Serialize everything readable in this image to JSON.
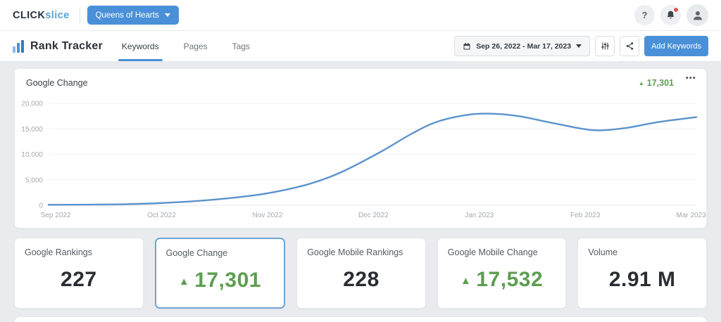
{
  "topbar": {
    "logo_primary": "CLICK",
    "logo_secondary": "slice",
    "project_name": "Queens of Hearts"
  },
  "toolbar": {
    "title": "Rank Tracker",
    "tabs": [
      {
        "label": "Keywords",
        "active": true
      },
      {
        "label": "Pages",
        "active": false
      },
      {
        "label": "Tags",
        "active": false
      }
    ],
    "date_range": "Sep 26, 2022 - Mar 17, 2023",
    "add_keywords_label": "Add Keywords"
  },
  "chart_panel": {
    "title": "Google Change",
    "delta_value": "17,301",
    "delta_direction": "up"
  },
  "chart_data": {
    "type": "line",
    "title": "Google Change",
    "x_tick_labels": [
      "Sep 2022",
      "Oct 2022",
      "Nov 2022",
      "Dec 2022",
      "Jan 2023",
      "Feb 2023",
      "Mar 2023"
    ],
    "y_ticks": [
      0,
      5000,
      10000,
      15000,
      20000
    ],
    "y_tick_labels": [
      "0",
      "5,000",
      "10,000",
      "15,000",
      "20,000"
    ],
    "ylim": [
      0,
      20000
    ],
    "grid": true,
    "legend": false,
    "line_color": "#5b93cc",
    "series": [
      {
        "name": "Google Change",
        "points": [
          {
            "x": 0.0,
            "y": 100
          },
          {
            "x": 0.06,
            "y": 130
          },
          {
            "x": 0.12,
            "y": 220
          },
          {
            "x": 0.17,
            "y": 420
          },
          {
            "x": 0.23,
            "y": 850
          },
          {
            "x": 0.29,
            "y": 1550
          },
          {
            "x": 0.34,
            "y": 2400
          },
          {
            "x": 0.4,
            "y": 4100
          },
          {
            "x": 0.45,
            "y": 6400
          },
          {
            "x": 0.51,
            "y": 10300
          },
          {
            "x": 0.56,
            "y": 14000
          },
          {
            "x": 0.6,
            "y": 16400
          },
          {
            "x": 0.65,
            "y": 17800
          },
          {
            "x": 0.69,
            "y": 17950
          },
          {
            "x": 0.73,
            "y": 17400
          },
          {
            "x": 0.78,
            "y": 16100
          },
          {
            "x": 0.84,
            "y": 14750
          },
          {
            "x": 0.89,
            "y": 15150
          },
          {
            "x": 0.94,
            "y": 16300
          },
          {
            "x": 1.0,
            "y": 17301
          }
        ]
      }
    ]
  },
  "cards": [
    {
      "label": "Google Rankings",
      "value": "227",
      "delta": false,
      "selected": false
    },
    {
      "label": "Google Change",
      "value": "17,301",
      "delta": true,
      "direction": "up",
      "selected": true
    },
    {
      "label": "Google Mobile Rankings",
      "value": "228",
      "delta": false,
      "selected": false
    },
    {
      "label": "Google Mobile Change",
      "value": "17,532",
      "delta": true,
      "direction": "up",
      "selected": false
    },
    {
      "label": "Volume",
      "value": "2.91 M",
      "delta": false,
      "selected": false
    }
  ],
  "icons": {
    "help": "?",
    "menu_dots": "•••",
    "up_arrow": "▲"
  },
  "colors": {
    "accent_blue": "#4a90d8",
    "line_blue": "#5b93cc",
    "positive_green": "#5d9e50",
    "notification_red": "#d9534f"
  }
}
